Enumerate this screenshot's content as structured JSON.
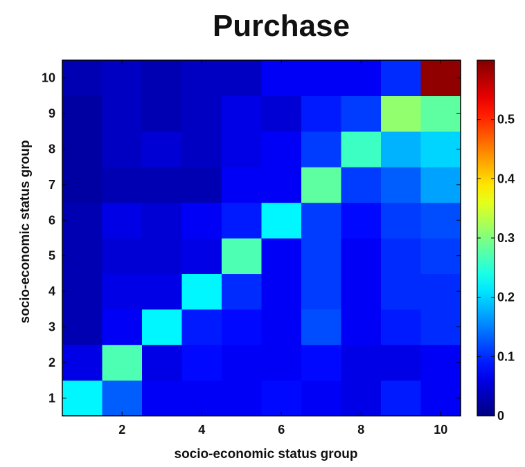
{
  "chart_data": {
    "type": "heatmap",
    "title": "Purchase",
    "xlabel": "socio-economic status group",
    "ylabel": "socio-economic status group",
    "x": [
      1,
      2,
      3,
      4,
      5,
      6,
      7,
      8,
      9,
      10
    ],
    "y": [
      1,
      2,
      3,
      4,
      5,
      6,
      7,
      8,
      9,
      10
    ],
    "x_tick_labels": [
      "2",
      "4",
      "6",
      "8",
      "10"
    ],
    "y_tick_labels": [
      "1",
      "2",
      "3",
      "4",
      "5",
      "6",
      "7",
      "8",
      "9",
      "10"
    ],
    "colormap": "jet",
    "color_range": [
      0,
      0.6
    ],
    "colorbar_tick_labels": [
      "0",
      "0.1",
      "0.2",
      "0.3",
      "0.4",
      "0.5"
    ],
    "colorbar_tick_values": [
      0,
      0.1,
      0.2,
      0.3,
      0.4,
      0.5
    ],
    "rows_by_y": [
      [
        0.22,
        0.13,
        0.07,
        0.07,
        0.07,
        0.08,
        0.07,
        0.06,
        0.09,
        0.07
      ],
      [
        0.06,
        0.27,
        0.06,
        0.08,
        0.07,
        0.07,
        0.08,
        0.06,
        0.06,
        0.07
      ],
      [
        0.03,
        0.07,
        0.22,
        0.09,
        0.08,
        0.07,
        0.12,
        0.07,
        0.09,
        0.1
      ],
      [
        0.03,
        0.06,
        0.06,
        0.22,
        0.1,
        0.07,
        0.11,
        0.07,
        0.1,
        0.1
      ],
      [
        0.03,
        0.05,
        0.05,
        0.06,
        0.27,
        0.07,
        0.11,
        0.07,
        0.1,
        0.11
      ],
      [
        0.03,
        0.06,
        0.05,
        0.07,
        0.09,
        0.22,
        0.11,
        0.08,
        0.11,
        0.12
      ],
      [
        0.02,
        0.03,
        0.03,
        0.03,
        0.07,
        0.07,
        0.28,
        0.11,
        0.13,
        0.17
      ],
      [
        0.02,
        0.04,
        0.05,
        0.04,
        0.06,
        0.07,
        0.11,
        0.26,
        0.18,
        0.2
      ],
      [
        0.02,
        0.04,
        0.03,
        0.04,
        0.06,
        0.05,
        0.09,
        0.11,
        0.31,
        0.28
      ],
      [
        0.03,
        0.04,
        0.03,
        0.04,
        0.04,
        0.07,
        0.07,
        0.07,
        0.1,
        0.59
      ]
    ]
  }
}
